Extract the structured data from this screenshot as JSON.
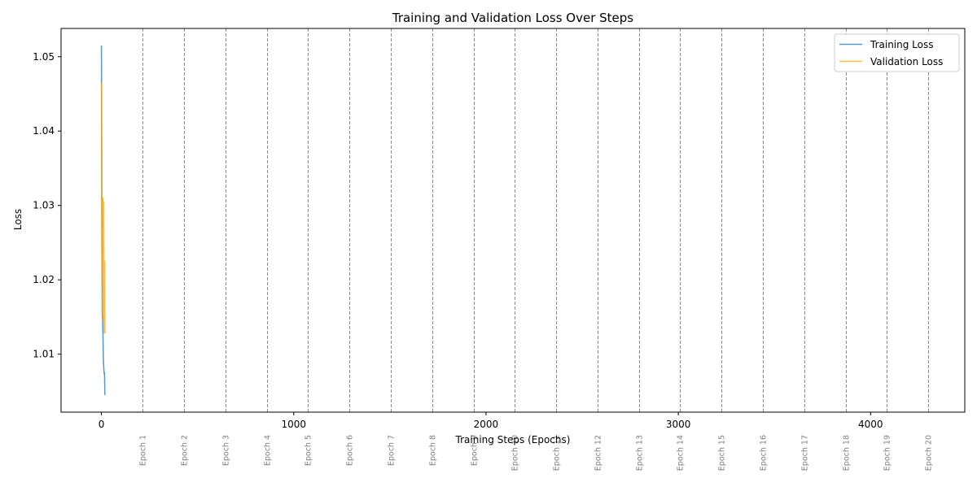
{
  "chart_data": {
    "type": "line",
    "title": "Training and Validation Loss Over Steps",
    "xlabel": "Training Steps (Epochs)",
    "ylabel": "Loss",
    "xlim": [
      -210,
      4490
    ],
    "ylim": [
      1.0022,
      1.0538
    ],
    "xticks": [
      0,
      1000,
      2000,
      3000,
      4000
    ],
    "yticks": [
      1.01,
      1.02,
      1.03,
      1.04,
      1.05
    ],
    "grid": false,
    "legend_position": "top-right",
    "epoch_markers": [
      {
        "x": 215,
        "label": "Epoch 1"
      },
      {
        "x": 430,
        "label": "Epoch 2"
      },
      {
        "x": 645,
        "label": "Epoch 3"
      },
      {
        "x": 860,
        "label": "Epoch 4"
      },
      {
        "x": 1075,
        "label": "Epoch 5"
      },
      {
        "x": 1290,
        "label": "Epoch 6"
      },
      {
        "x": 1505,
        "label": "Epoch 7"
      },
      {
        "x": 1720,
        "label": "Epoch 8"
      },
      {
        "x": 1935,
        "label": "Epoch 9"
      },
      {
        "x": 2150,
        "label": "Epoch 10"
      },
      {
        "x": 2365,
        "label": "Epoch 11"
      },
      {
        "x": 2580,
        "label": "Epoch 12"
      },
      {
        "x": 2795,
        "label": "Epoch 13"
      },
      {
        "x": 3010,
        "label": "Epoch 14"
      },
      {
        "x": 3225,
        "label": "Epoch 15"
      },
      {
        "x": 3440,
        "label": "Epoch 16"
      },
      {
        "x": 3655,
        "label": "Epoch 17"
      },
      {
        "x": 3870,
        "label": "Epoch 18"
      },
      {
        "x": 4085,
        "label": "Epoch 19"
      },
      {
        "x": 4300,
        "label": "Epoch 20"
      }
    ],
    "series": [
      {
        "name": "Training Loss",
        "color": "#1f77b4",
        "x": [
          0,
          2,
          4,
          6,
          8,
          10,
          12,
          14,
          16,
          18
        ],
        "y": [
          1.0515,
          1.032,
          1.0155,
          1.0148,
          1.0125,
          1.0095,
          1.0082,
          1.0074,
          1.0075,
          1.0045
        ]
      },
      {
        "name": "Validation Loss",
        "color": "#ffa500",
        "x": [
          0,
          2,
          4,
          6,
          8,
          10,
          12,
          14,
          16,
          18
        ],
        "y": [
          1.0465,
          1.024,
          1.0205,
          1.0152,
          1.031,
          1.0145,
          1.0305,
          1.0128,
          1.0225,
          1.0128
        ]
      }
    ]
  }
}
